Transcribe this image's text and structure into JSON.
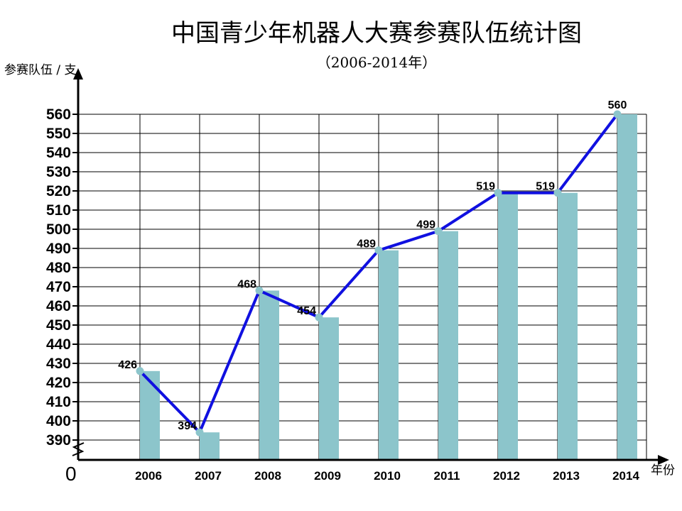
{
  "chart_data": {
    "type": "bar",
    "title": "中国青少年机器人大赛参赛队伍统计图",
    "subtitle": "（2006-2014年）",
    "ylabel": "参赛队伍 / 支",
    "xlabel": "年份",
    "origin_label": "0",
    "categories": [
      "2006",
      "2007",
      "2008",
      "2009",
      "2010",
      "2011",
      "2012",
      "2013",
      "2014"
    ],
    "values": [
      426,
      394,
      468,
      454,
      489,
      499,
      519,
      519,
      560
    ],
    "yticks": [
      390,
      400,
      410,
      420,
      430,
      440,
      450,
      460,
      470,
      480,
      490,
      500,
      510,
      520,
      530,
      540,
      550,
      560
    ],
    "ylim": [
      385,
      560
    ],
    "axis_break": true,
    "grid": true,
    "overlay_line": true,
    "colors": {
      "bar": "#8cc5cb",
      "line": "#1010e0",
      "marker": "#8cc5cb",
      "grid": "#000000"
    }
  }
}
